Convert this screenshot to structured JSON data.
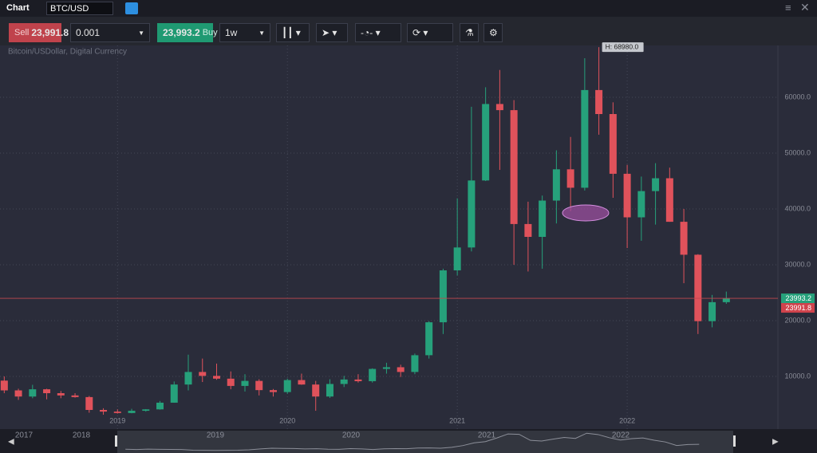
{
  "window": {
    "title": "Chart",
    "symbol": "BTC/USD"
  },
  "toolbar": {
    "sell_label": "Sell",
    "sell_price": "23,991.8",
    "quantity": "0.001",
    "buy_price": "23,993.2",
    "buy_label": "Buy",
    "interval": "1w"
  },
  "chart_data": {
    "type": "candlestick",
    "subtitle": "Bitcoin/USDollar, Digital Currency",
    "ohlc": [
      [
        9250,
        10000,
        7000,
        7500
      ],
      [
        7500,
        7800,
        5800,
        6400
      ],
      [
        6400,
        8500,
        6100,
        7700
      ],
      [
        7700,
        7800,
        5900,
        7000
      ],
      [
        7000,
        7400,
        6100,
        6600
      ],
      [
        6600,
        7000,
        6200,
        6300
      ],
      [
        6300,
        6500,
        3500,
        4000
      ],
      [
        4000,
        4300,
        3150,
        3700
      ],
      [
        3700,
        4100,
        3350,
        3450
      ],
      [
        3450,
        4200,
        3400,
        3850
      ],
      [
        3850,
        4150,
        3700,
        4100
      ],
      [
        4100,
        5600,
        4050,
        5300
      ],
      [
        5300,
        9100,
        5300,
        8550
      ],
      [
        8550,
        13900,
        7500,
        10800
      ],
      [
        10800,
        13200,
        9000,
        10100
      ],
      [
        10100,
        12300,
        9400,
        9600
      ],
      [
        9600,
        10900,
        7700,
        8300
      ],
      [
        8300,
        10400,
        7300,
        9200
      ],
      [
        9200,
        9500,
        6600,
        7550
      ],
      [
        7550,
        7750,
        6400,
        7200
      ],
      [
        7200,
        9600,
        6900,
        9350
      ],
      [
        9350,
        10500,
        8500,
        8550
      ],
      [
        8550,
        9200,
        3850,
        6400
      ],
      [
        6400,
        9500,
        6150,
        8650
      ],
      [
        8650,
        10100,
        8100,
        9450
      ],
      [
        9450,
        10400,
        8900,
        9150
      ],
      [
        9150,
        11450,
        8900,
        11350
      ],
      [
        11350,
        12450,
        10500,
        11650
      ],
      [
        11650,
        12100,
        9900,
        10800
      ],
      [
        10800,
        14100,
        10400,
        13800
      ],
      [
        13800,
        19900,
        13200,
        19700
      ],
      [
        19700,
        29300,
        17600,
        29000
      ],
      [
        29000,
        41900,
        28100,
        33100
      ],
      [
        33100,
        58300,
        32400,
        45100
      ],
      [
        45100,
        61800,
        45000,
        58800
      ],
      [
        58800,
        64900,
        47000,
        57700
      ],
      [
        57700,
        59500,
        30000,
        37300
      ],
      [
        37300,
        41300,
        28800,
        35000
      ],
      [
        35000,
        42400,
        29300,
        41500
      ],
      [
        41500,
        50500,
        37400,
        47100
      ],
      [
        47100,
        52900,
        39600,
        43800
      ],
      [
        43800,
        67000,
        43300,
        61300
      ],
      [
        61300,
        68980,
        53300,
        57000
      ],
      [
        57000,
        59100,
        42000,
        46300
      ],
      [
        46300,
        47900,
        33000,
        38500
      ],
      [
        38500,
        45800,
        34300,
        43200
      ],
      [
        43200,
        48200,
        37200,
        45500
      ],
      [
        45500,
        47400,
        37700,
        37700
      ],
      [
        37700,
        40000,
        26700,
        31800
      ],
      [
        31800,
        31900,
        17600,
        19900
      ],
      [
        19900,
        24600,
        18800,
        23300
      ],
      [
        23300,
        25200,
        23000,
        23993.2
      ]
    ],
    "up_color": "#26a17b",
    "down_color": "#e0525b",
    "xlim": [
      -0.3,
      53.8
    ],
    "xticks": [
      {
        "value": 8,
        "label": "2019"
      },
      {
        "value": 20,
        "label": "2020"
      },
      {
        "value": 32,
        "label": "2021"
      },
      {
        "value": 44,
        "label": "2022"
      }
    ],
    "ylim": [
      0,
      70000
    ],
    "yticks": [
      {
        "value": 10000,
        "label": "10000.0"
      },
      {
        "value": 20000,
        "label": "20000.0"
      },
      {
        "value": 30000,
        "label": "30000.0"
      },
      {
        "value": 40000,
        "label": "40000.0"
      },
      {
        "value": 50000,
        "label": "50000.0"
      },
      {
        "value": 60000,
        "label": "60000.0"
      }
    ],
    "grid": true,
    "high_label": "H: 68980.0",
    "price_tags": [
      23993.2,
      23991.8
    ],
    "price_tag_colors": [
      "#26a17b",
      "#d0434c"
    ]
  },
  "navigator": {
    "labels": [
      "2017",
      "2018",
      "2019",
      "2020",
      "2021",
      "2022"
    ]
  }
}
